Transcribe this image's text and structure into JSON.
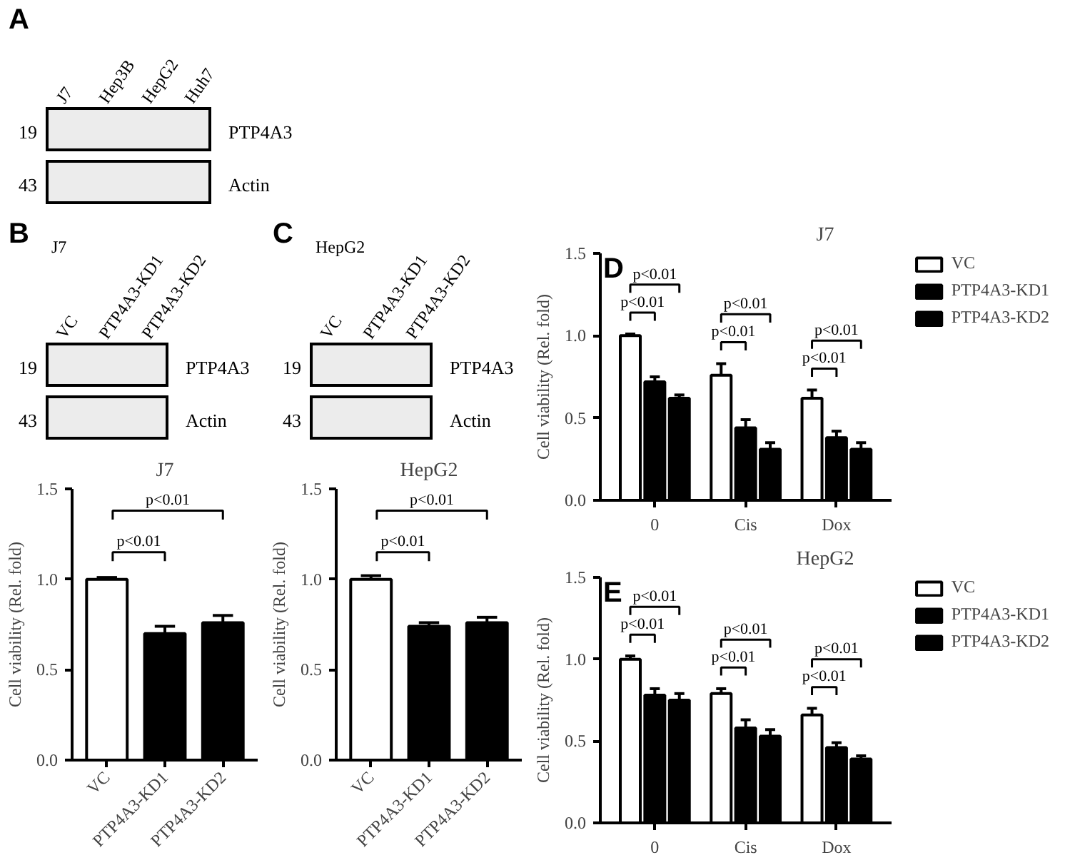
{
  "chart_data": [
    {
      "type": "other",
      "title": "A",
      "categories": [
        "J7",
        "Hep3B",
        "HepG2",
        "Huh7"
      ],
      "annotations": [
        "19",
        "PTP4A3",
        "43",
        "Actin"
      ]
    },
    {
      "type": "other",
      "title": "B",
      "subtitle": "J7",
      "categories": [
        "VC",
        "PTP4A3-KD1",
        "PTP4A3-KD2"
      ],
      "annotations": [
        "19",
        "PTP4A3",
        "43",
        "Actin"
      ]
    },
    {
      "type": "bar",
      "title": "J7",
      "ylabel": "Cell viability (Rel. fold)",
      "categories": [
        "VC",
        "PTP4A3-KD1",
        "PTP4A3-KD2"
      ],
      "values": [
        1.0,
        0.7,
        0.76
      ],
      "errors": [
        0.01,
        0.04,
        0.04
      ],
      "colors": [
        "#ffffff",
        "#000000",
        "#000000"
      ],
      "ylim": [
        0,
        1.5
      ],
      "yticks": [
        {
          "value": 0,
          "label": "0.0"
        },
        {
          "value": 0.5,
          "label": "0.5"
        },
        {
          "value": 1,
          "label": "1.0"
        },
        {
          "value": 1.5,
          "label": "1.5"
        }
      ],
      "annotations": [
        "p<0.01",
        "p<0.01"
      ]
    },
    {
      "type": "other",
      "title": "C",
      "subtitle": "HepG2",
      "categories": [
        "VC",
        "PTP4A3-KD1",
        "PTP4A3-KD2"
      ],
      "annotations": [
        "19",
        "PTP4A3",
        "43",
        "Actin"
      ]
    },
    {
      "type": "bar",
      "title": "HepG2",
      "ylabel": "Cell viability (Rel. fold)",
      "categories": [
        "VC",
        "PTP4A3-KD1",
        "PTP4A3-KD2"
      ],
      "values": [
        1.0,
        0.74,
        0.76
      ],
      "errors": [
        0.02,
        0.02,
        0.03
      ],
      "colors": [
        "#ffffff",
        "#000000",
        "#000000"
      ],
      "ylim": [
        0,
        1.5
      ],
      "yticks": [
        {
          "value": 0,
          "label": "0.0"
        },
        {
          "value": 0.5,
          "label": "0.5"
        },
        {
          "value": 1,
          "label": "1.0"
        },
        {
          "value": 1.5,
          "label": "1.5"
        }
      ],
      "annotations": [
        "p<0.01",
        "p<0.01"
      ]
    },
    {
      "type": "bar",
      "title": "J7",
      "ylabel": "Cell viability (Rel. fold)",
      "categories": [
        "0",
        "Cis",
        "Dox"
      ],
      "legend": "right",
      "ylim": [
        0,
        1.5
      ],
      "yticks": [
        {
          "value": 0,
          "label": "0.0"
        },
        {
          "value": 0.5,
          "label": "0.5"
        },
        {
          "value": 1,
          "label": "1.0"
        },
        {
          "value": 1.5,
          "label": "1.5"
        }
      ],
      "series": [
        {
          "name": "VC",
          "color": "#ffffff",
          "values": [
            1.0,
            0.76,
            0.62
          ],
          "errors": [
            0.01,
            0.07,
            0.05
          ]
        },
        {
          "name": "PTP4A3-KD1",
          "color": "#000000",
          "values": [
            0.72,
            0.44,
            0.38
          ],
          "errors": [
            0.03,
            0.05,
            0.04
          ]
        },
        {
          "name": "PTP4A3-KD2",
          "color": "#000000",
          "values": [
            0.62,
            0.31,
            0.31
          ],
          "errors": [
            0.02,
            0.04,
            0.04
          ]
        }
      ],
      "annotations": [
        "D",
        "p<0.01",
        "p<0.01",
        "p<0.01",
        "p<0.01",
        "p<0.01",
        "p<0.01"
      ]
    },
    {
      "type": "bar",
      "title": "HepG2",
      "ylabel": "Cell viability (Rel. fold)",
      "categories": [
        "0",
        "Cis",
        "Dox"
      ],
      "legend": "right",
      "ylim": [
        0,
        1.5
      ],
      "yticks": [
        {
          "value": 0,
          "label": "0.0"
        },
        {
          "value": 0.5,
          "label": "0.5"
        },
        {
          "value": 1,
          "label": "1.0"
        },
        {
          "value": 1.5,
          "label": "1.5"
        }
      ],
      "series": [
        {
          "name": "VC",
          "color": "#ffffff",
          "values": [
            1.0,
            0.79,
            0.66
          ],
          "errors": [
            0.02,
            0.03,
            0.04
          ]
        },
        {
          "name": "PTP4A3-KD1",
          "color": "#000000",
          "values": [
            0.78,
            0.58,
            0.46
          ],
          "errors": [
            0.04,
            0.05,
            0.03
          ]
        },
        {
          "name": "PTP4A3-KD2",
          "color": "#000000",
          "values": [
            0.75,
            0.53,
            0.39
          ],
          "errors": [
            0.04,
            0.04,
            0.02
          ]
        }
      ],
      "annotations": [
        "E",
        "p<0.01",
        "p<0.01",
        "p<0.01",
        "p<0.01",
        "p<0.01",
        "p<0.01"
      ]
    }
  ]
}
